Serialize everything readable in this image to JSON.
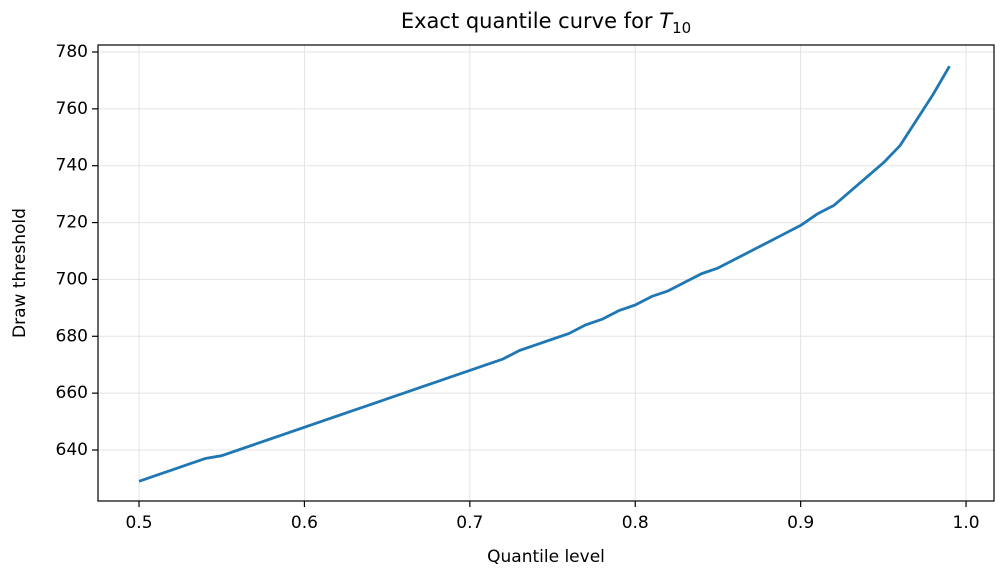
{
  "chart_data": {
    "type": "line",
    "title": {
      "text": "Exact quantile curve for",
      "variable": "T",
      "subscript": "10"
    },
    "xlabel": "Quantile level",
    "ylabel": "Draw threshold",
    "x": [
      0.5,
      0.51,
      0.52,
      0.53,
      0.54,
      0.55,
      0.56,
      0.57,
      0.58,
      0.59,
      0.6,
      0.61,
      0.62,
      0.63,
      0.64,
      0.65,
      0.66,
      0.67,
      0.68,
      0.69,
      0.7,
      0.71,
      0.72,
      0.73,
      0.74,
      0.75,
      0.76,
      0.77,
      0.78,
      0.79,
      0.8,
      0.81,
      0.82,
      0.83,
      0.84,
      0.85,
      0.86,
      0.87,
      0.88,
      0.89,
      0.9,
      0.91,
      0.92,
      0.93,
      0.94,
      0.95,
      0.96,
      0.97,
      0.98,
      0.99
    ],
    "series": [
      {
        "color": "#1f77b4",
        "values": [
          629,
          631,
          633,
          635,
          637,
          638,
          640,
          642,
          644,
          646,
          648,
          650,
          652,
          654,
          656,
          658,
          660,
          662,
          664,
          666,
          668,
          670,
          672,
          675,
          677,
          679,
          681,
          684,
          686,
          689,
          691,
          694,
          696,
          699,
          702,
          704,
          707,
          710,
          713,
          716,
          719,
          723,
          726,
          731,
          736,
          741,
          747,
          756,
          765,
          775
        ]
      }
    ],
    "xlim": [
      0.4752,
      1.0169
    ],
    "ylim": [
      622.06,
      782.46
    ],
    "xticks": [
      0.5,
      0.6,
      0.7,
      0.8,
      0.9,
      {
        "value": 1,
        "label": "1.0"
      }
    ],
    "yticks": [
      640,
      660,
      680,
      700,
      720,
      740,
      760,
      780
    ],
    "grid": true
  }
}
